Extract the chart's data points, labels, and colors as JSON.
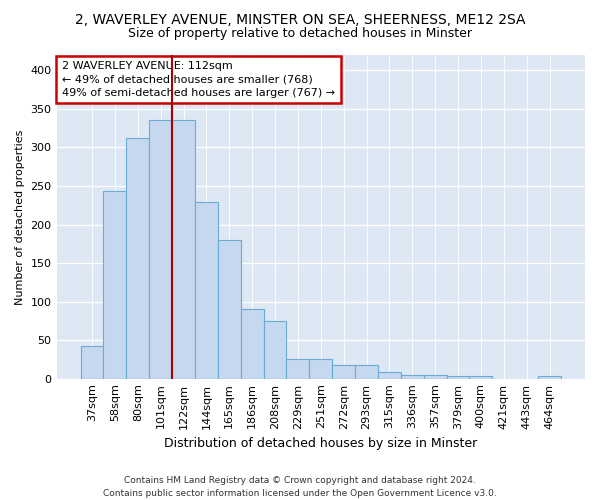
{
  "title1": "2, WAVERLEY AVENUE, MINSTER ON SEA, SHEERNESS, ME12 2SA",
  "title2": "Size of property relative to detached houses in Minster",
  "xlabel": "Distribution of detached houses by size in Minster",
  "ylabel": "Number of detached properties",
  "categories": [
    "37sqm",
    "58sqm",
    "80sqm",
    "101sqm",
    "122sqm",
    "144sqm",
    "165sqm",
    "186sqm",
    "208sqm",
    "229sqm",
    "251sqm",
    "272sqm",
    "293sqm",
    "315sqm",
    "336sqm",
    "357sqm",
    "379sqm",
    "400sqm",
    "421sqm",
    "443sqm",
    "464sqm"
  ],
  "values": [
    43,
    244,
    312,
    336,
    336,
    229,
    180,
    90,
    75,
    25,
    25,
    18,
    18,
    9,
    5,
    5,
    4,
    3,
    0,
    0,
    3
  ],
  "bar_color": "#c5d8f0",
  "bar_edge_color": "#6aaad4",
  "red_line_x": 3.5,
  "annotation_text": "2 WAVERLEY AVENUE: 112sqm\n← 49% of detached houses are smaller (768)\n49% of semi-detached houses are larger (767) →",
  "annotation_box_facecolor": "#ffffff",
  "annotation_box_edgecolor": "#cc0000",
  "ylim": [
    0,
    420
  ],
  "yticks": [
    0,
    50,
    100,
    150,
    200,
    250,
    300,
    350,
    400
  ],
  "footer": "Contains HM Land Registry data © Crown copyright and database right 2024.\nContains public sector information licensed under the Open Government Licence v3.0.",
  "bg_color": "#ffffff",
  "plot_bg_color": "#dde8f4",
  "grid_color": "#ffffff",
  "title1_fontsize": 10,
  "title2_fontsize": 9,
  "xlabel_fontsize": 9,
  "ylabel_fontsize": 8,
  "tick_fontsize": 8,
  "footer_fontsize": 6.5
}
